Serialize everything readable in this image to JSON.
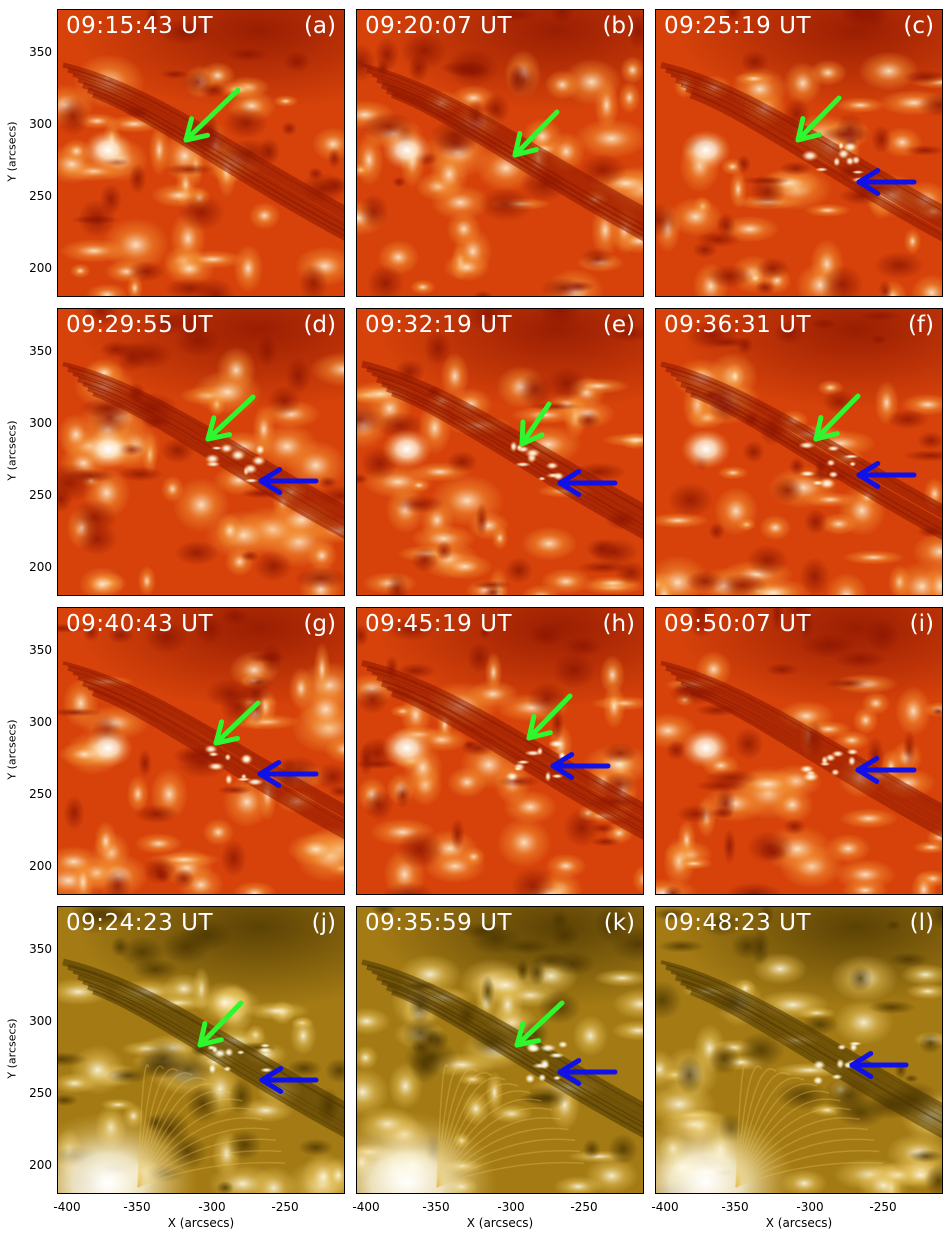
{
  "colors": {
    "aia304_dark": "#8c1500",
    "aia304_mid": "#d6420a",
    "aia304_bright": "#f59536",
    "aia304_white": "#fff1d6",
    "aia171_dark": "#4a3400",
    "aia171_mid": "#a37a14",
    "aia171_bright": "#e6c25a",
    "aia171_white": "#fffbe6",
    "green_arrow": "#2ef72e",
    "blue_arrow": "#1010e8"
  },
  "axes": {
    "ylabel": "Y (arcsecs)",
    "xlabel": "X (arcsecs)",
    "yticks": [
      "350",
      "300",
      "250",
      "200"
    ],
    "xticks": [
      "-400",
      "-350",
      "-300",
      "-250"
    ]
  },
  "panels": [
    {
      "time": "09:15:43 UT",
      "label": "(a)",
      "band": "304",
      "green_arrow": true,
      "blue_arrow": false
    },
    {
      "time": "09:20:07 UT",
      "label": "(b)",
      "band": "304",
      "green_arrow": true,
      "blue_arrow": false
    },
    {
      "time": "09:25:19 UT",
      "label": "(c)",
      "band": "304",
      "green_arrow": true,
      "blue_arrow": true
    },
    {
      "time": "09:29:55 UT",
      "label": "(d)",
      "band": "304",
      "green_arrow": true,
      "blue_arrow": true
    },
    {
      "time": "09:32:19 UT",
      "label": "(e)",
      "band": "304",
      "green_arrow": true,
      "blue_arrow": true
    },
    {
      "time": "09:36:31 UT",
      "label": "(f)",
      "band": "304",
      "green_arrow": true,
      "blue_arrow": true
    },
    {
      "time": "09:40:43 UT",
      "label": "(g)",
      "band": "304",
      "green_arrow": true,
      "blue_arrow": true
    },
    {
      "time": "09:45:19 UT",
      "label": "(h)",
      "band": "304",
      "green_arrow": true,
      "blue_arrow": true
    },
    {
      "time": "09:50:07 UT",
      "label": "(i)",
      "band": "304",
      "green_arrow": false,
      "blue_arrow": true
    },
    {
      "time": "09:24:23 UT",
      "label": "(j)",
      "band": "171",
      "green_arrow": true,
      "blue_arrow": true
    },
    {
      "time": "09:35:59 UT",
      "label": "(k)",
      "band": "171",
      "green_arrow": true,
      "blue_arrow": true
    },
    {
      "time": "09:48:23 UT",
      "label": "(l)",
      "band": "171",
      "green_arrow": false,
      "blue_arrow": true
    }
  ]
}
